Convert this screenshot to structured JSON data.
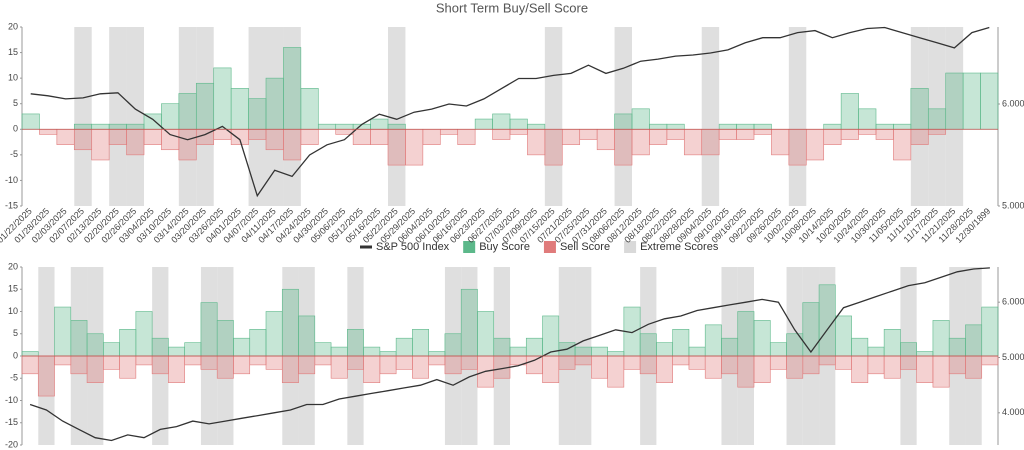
{
  "chart_data": [
    {
      "type": "combo",
      "title": "Short Term Buy/Sell Score",
      "categories": [
        "01/22/2025",
        "01/28/2025",
        "02/03/2025",
        "02/07/2025",
        "02/13/2025",
        "02/20/2025",
        "02/26/2025",
        "03/04/2025",
        "03/10/2025",
        "03/14/2025",
        "03/20/2025",
        "03/26/2025",
        "04/01/2025",
        "04/07/2025",
        "04/11/2025",
        "04/17/2025",
        "04/24/2025",
        "04/30/2025",
        "05/06/2025",
        "05/12/2025",
        "05/16/2025",
        "05/22/2025",
        "05/29/2025",
        "06/04/2025",
        "06/10/2025",
        "06/16/2025",
        "06/23/2025",
        "06/27/2025",
        "07/03/2025",
        "07/09/2025",
        "07/15/2025",
        "07/21/2025",
        "07/25/2025",
        "07/31/2025",
        "08/06/2025",
        "08/12/2025",
        "08/18/2025",
        "08/22/2025",
        "08/28/2025",
        "09/04/2025",
        "09/10/2025",
        "09/16/2025",
        "09/22/2025",
        "09/26/2025",
        "10/02/2025",
        "10/08/2025",
        "10/14/2025",
        "10/20/2025",
        "10/24/2025",
        "10/30/2025",
        "11/05/2025",
        "11/11/2025",
        "11/17/2025",
        "11/21/2025",
        "11/28/2025",
        "12/30/1899"
      ],
      "series": [
        {
          "name": "Extreme Scores",
          "type": "band",
          "color": "#d9d9d9",
          "values": [
            false,
            false,
            false,
            true,
            false,
            true,
            true,
            false,
            false,
            true,
            true,
            false,
            false,
            true,
            true,
            true,
            false,
            false,
            false,
            false,
            false,
            true,
            false,
            false,
            false,
            false,
            false,
            false,
            false,
            false,
            true,
            false,
            false,
            false,
            true,
            false,
            false,
            false,
            false,
            true,
            false,
            false,
            false,
            false,
            true,
            false,
            false,
            false,
            false,
            false,
            false,
            true,
            true,
            true,
            false,
            false
          ]
        },
        {
          "name": "Buy Score",
          "type": "area",
          "color": "#5cb88a",
          "values": [
            3,
            0,
            0,
            1,
            1,
            1,
            1,
            3,
            5,
            7,
            9,
            12,
            8,
            6,
            10,
            16,
            8,
            1,
            1,
            1,
            2,
            1,
            0,
            0,
            0,
            0,
            2,
            3,
            2,
            1,
            0,
            0,
            0,
            0,
            3,
            4,
            1,
            1,
            0,
            0,
            1,
            1,
            1,
            0,
            0,
            0,
            1,
            7,
            4,
            1,
            1,
            8,
            4,
            11,
            11,
            11
          ]
        },
        {
          "name": "Sell Score",
          "type": "area",
          "color": "#e07b7b",
          "values": [
            0,
            -1,
            -3,
            -4,
            -6,
            -3,
            -5,
            -3,
            -4,
            -6,
            -3,
            -2,
            -3,
            -2,
            -4,
            -6,
            -3,
            0,
            -1,
            -3,
            -3,
            -7,
            -7,
            -3,
            -1,
            -3,
            0,
            -2,
            -1,
            -5,
            -7,
            -3,
            -2,
            -4,
            -7,
            -5,
            -3,
            -2,
            -5,
            -5,
            -2,
            -2,
            -1,
            -5,
            -7,
            -6,
            -3,
            -2,
            -1,
            -2,
            -6,
            -3,
            -1,
            0,
            0,
            0
          ]
        },
        {
          "name": "S&P 500 Index",
          "type": "line",
          "axis": "y2",
          "color": "#333333",
          "values": [
            6100,
            6080,
            6050,
            6060,
            6100,
            6110,
            5950,
            5850,
            5700,
            5650,
            5700,
            5780,
            5650,
            5100,
            5350,
            5290,
            5500,
            5600,
            5650,
            5800,
            5900,
            5850,
            5920,
            5950,
            6000,
            5980,
            6050,
            6150,
            6250,
            6250,
            6280,
            6300,
            6380,
            6300,
            6350,
            6420,
            6440,
            6470,
            6480,
            6500,
            6530,
            6600,
            6650,
            6650,
            6700,
            6720,
            6650,
            6700,
            6740,
            6750,
            6700,
            6650,
            6600,
            6550,
            6700,
            6750
          ]
        }
      ],
      "ylim": [
        -15,
        20
      ],
      "yticks": [
        -15,
        -10,
        -5,
        0,
        5,
        10,
        15,
        20
      ],
      "y2lim": [
        5000,
        6755
      ],
      "y2ticks": [
        {
          "value": 5000,
          "label": "5.000"
        },
        {
          "value": 6000,
          "label": "6.000"
        }
      ]
    },
    {
      "type": "combo",
      "series": [
        {
          "type": "band",
          "color": "#d9d9d9",
          "values": [
            false,
            true,
            false,
            true,
            true,
            false,
            false,
            false,
            true,
            false,
            false,
            true,
            true,
            false,
            false,
            false,
            true,
            true,
            false,
            false,
            true,
            false,
            false,
            false,
            false,
            false,
            true,
            true,
            false,
            true,
            false,
            false,
            false,
            true,
            true,
            false,
            false,
            false,
            true,
            false,
            false,
            false,
            false,
            true,
            true,
            false,
            false,
            true,
            true,
            true,
            false,
            false,
            false,
            false,
            true,
            false,
            false,
            true,
            true,
            false
          ]
        },
        {
          "type": "area",
          "color": "#5cb88a",
          "values": [
            1,
            0,
            11,
            8,
            5,
            3,
            6,
            10,
            4,
            2,
            3,
            12,
            8,
            4,
            6,
            10,
            15,
            9,
            3,
            2,
            6,
            2,
            1,
            4,
            6,
            1,
            5,
            15,
            10,
            4,
            2,
            4,
            9,
            3,
            2,
            2,
            1,
            11,
            5,
            3,
            6,
            2,
            7,
            4,
            10,
            8,
            3,
            5,
            12,
            16,
            9,
            4,
            2,
            6,
            3,
            1,
            8,
            4,
            7,
            11
          ]
        },
        {
          "type": "area",
          "color": "#e07b7b",
          "values": [
            -4,
            -9,
            -2,
            -4,
            -6,
            -3,
            -5,
            -2,
            -4,
            -6,
            -2,
            -3,
            -5,
            -4,
            -2,
            -3,
            -6,
            -4,
            -2,
            -5,
            -3,
            -6,
            -4,
            -3,
            -5,
            -2,
            -4,
            -3,
            -7,
            -5,
            -2,
            -4,
            -6,
            -3,
            -2,
            -5,
            -7,
            -3,
            -4,
            -6,
            -2,
            -3,
            -5,
            -4,
            -7,
            -6,
            -3,
            -5,
            -4,
            -2,
            -3,
            -6,
            -4,
            -5,
            -3,
            -6,
            -7,
            -4,
            -5,
            -2
          ]
        },
        {
          "type": "line",
          "axis": "y2",
          "color": "#333333",
          "values": [
            4150,
            4050,
            3850,
            3700,
            3550,
            3500,
            3600,
            3550,
            3700,
            3750,
            3850,
            3800,
            3850,
            3900,
            3950,
            4000,
            4050,
            4150,
            4150,
            4250,
            4300,
            4350,
            4400,
            4450,
            4500,
            4600,
            4500,
            4650,
            4750,
            4800,
            4850,
            4950,
            5100,
            5150,
            5300,
            5400,
            5500,
            5450,
            5600,
            5700,
            5750,
            5850,
            5900,
            5950,
            6000,
            6050,
            6000,
            5500,
            5100,
            5500,
            5900,
            6000,
            6100,
            6200,
            6300,
            6350,
            6450,
            6550,
            6600,
            6620
          ]
        }
      ],
      "ylim": [
        -20,
        20
      ],
      "yticks": [
        -20,
        -15,
        -10,
        -5,
        0,
        5,
        10,
        15,
        20
      ],
      "y2lim": [
        3418,
        6636
      ],
      "y2ticks": [
        {
          "value": 4000,
          "label": "4.000"
        },
        {
          "value": 5000,
          "label": "5.000"
        },
        {
          "value": 6000,
          "label": "6.000"
        }
      ]
    }
  ]
}
